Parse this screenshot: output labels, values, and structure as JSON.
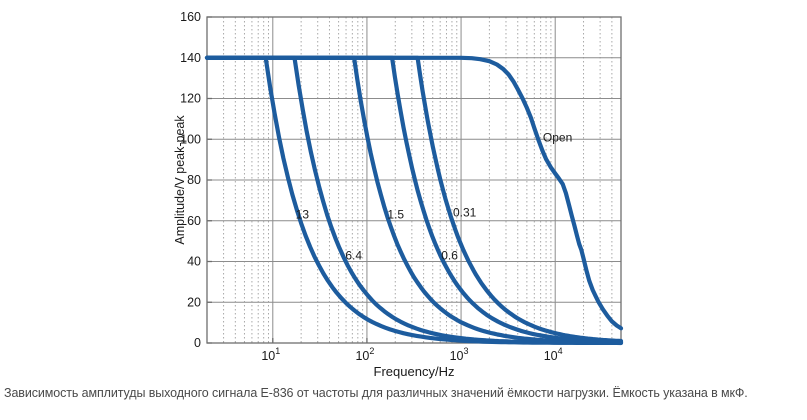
{
  "figure": {
    "caption": "Зависимость амплитуды выходного сигнала E-836 от частоты для различных значений ёмкости нагрузки. Ёмкость указана в мкФ."
  },
  "chart_data": {
    "type": "line",
    "title": "",
    "xlabel": "Frequency/Hz",
    "ylabel": "Amplitude/V peak-peak",
    "x_scale": "log",
    "xlim": [
      2,
      50000
    ],
    "ylim": [
      0,
      160
    ],
    "yticks": [
      0,
      20,
      40,
      60,
      80,
      100,
      120,
      140,
      160
    ],
    "xtick_exponents": [
      1,
      2,
      3,
      4
    ],
    "grid": {
      "major": true,
      "minor_x_dotted": true,
      "legend": "none"
    },
    "flat_level_v": 140,
    "series": [
      {
        "name": "13",
        "capacitance_uF": 13,
        "model": "amplitude = min(140, 140*corner_hz/f)",
        "corner_hz": 8.4
      },
      {
        "name": "6.4",
        "capacitance_uF": 6.4,
        "model": "amplitude = min(140, 140*corner_hz/f)",
        "corner_hz": 17
      },
      {
        "name": "1.5",
        "capacitance_uF": 1.5,
        "model": "amplitude = min(140, 140*corner_hz/f)",
        "corner_hz": 73
      },
      {
        "name": "0.6",
        "capacitance_uF": 0.6,
        "model": "amplitude = min(140, 140*corner_hz/f)",
        "corner_hz": 185
      },
      {
        "name": "0.31",
        "capacitance_uF": 0.31,
        "model": "amplitude = min(140, 140*corner_hz/f)",
        "corner_hz": 345
      },
      {
        "name": "Open",
        "capacitance_uF": null,
        "points": [
          [
            2,
            140
          ],
          [
            1000,
            140
          ],
          [
            1300,
            139.8
          ],
          [
            1600,
            139.3
          ],
          [
            2000,
            138.3
          ],
          [
            2400,
            136.7
          ],
          [
            2800,
            134.5
          ],
          [
            3200,
            131.8
          ],
          [
            3600,
            128.4
          ],
          [
            4000,
            124.6
          ],
          [
            4500,
            120
          ],
          [
            5000,
            115.4
          ],
          [
            5500,
            110.7
          ],
          [
            6000,
            105.5
          ],
          [
            6600,
            100
          ],
          [
            7300,
            94.6
          ],
          [
            8000,
            90.2
          ],
          [
            9000,
            86.2
          ],
          [
            10000,
            83.2
          ],
          [
            11000,
            80.6
          ],
          [
            12000,
            78
          ],
          [
            13000,
            73.5
          ],
          [
            14000,
            67.8
          ],
          [
            15000,
            62.4
          ],
          [
            16000,
            57.6
          ],
          [
            17000,
            52.8
          ],
          [
            18000,
            48.6
          ],
          [
            19000,
            45.6
          ],
          [
            20000,
            41.5
          ],
          [
            21500,
            35.5
          ],
          [
            23000,
            30.5
          ],
          [
            25000,
            26
          ],
          [
            27000,
            22.8
          ],
          [
            29000,
            20
          ],
          [
            32000,
            16.6
          ],
          [
            36000,
            13.2
          ],
          [
            40000,
            10.6
          ],
          [
            45000,
            8.6
          ],
          [
            50000,
            7.2
          ]
        ]
      }
    ],
    "annotations": [
      {
        "label": "13",
        "f": 17.5,
        "v": 61
      },
      {
        "label": "6.4",
        "f": 59,
        "v": 41
      },
      {
        "label": "1.5",
        "f": 165,
        "v": 61
      },
      {
        "label": "0.6",
        "f": 615,
        "v": 41
      },
      {
        "label": "0.31",
        "f": 820,
        "v": 62
      },
      {
        "label": "Open",
        "f": 7400,
        "v": 99
      }
    ],
    "colors": {
      "curve": "#1d5c9e",
      "grid_major": "#8c8c8c",
      "grid_minor": "#a8a8a8",
      "frame": "#6e6e6e",
      "tick_text": "#1a1a1a",
      "caption_text": "#4a4a4a",
      "background": "#ffffff"
    }
  }
}
